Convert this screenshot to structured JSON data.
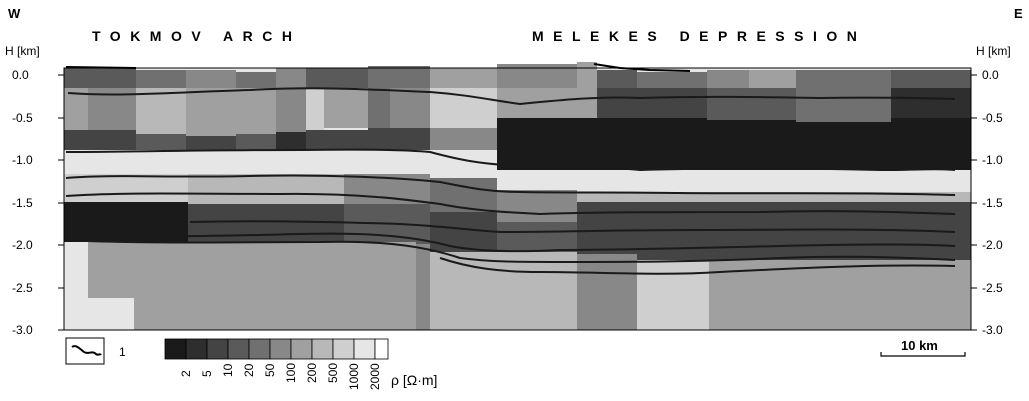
{
  "directions": {
    "west": "W",
    "east": "E"
  },
  "regions": {
    "left": "TOKMOV ARCH",
    "right": "MELEKES DEPRESSION"
  },
  "axis": {
    "label_left": "H [km]",
    "label_right": "H [km]",
    "ticks": [
      "0.0",
      "-0.5",
      "-1.0",
      "-1.5",
      "-2.0",
      "-2.5",
      "-3.0"
    ],
    "depth_range_km": [
      0.0,
      -3.0
    ]
  },
  "legend": {
    "line_symbol_label": "1",
    "resistivity_values": [
      "2",
      "5",
      "10",
      "20",
      "50",
      "100",
      "200",
      "500",
      "1000",
      "2000"
    ],
    "resistivity_unit": "ρ [Ω·m]",
    "colors": [
      "#1a1a1a",
      "#2e2e2e",
      "#444444",
      "#5a5a5a",
      "#707070",
      "#888888",
      "#a0a0a0",
      "#b8b8b8",
      "#cfcfcf",
      "#e6e6e6",
      "#ffffff"
    ]
  },
  "scale_bar": {
    "label": "10 km"
  }
}
